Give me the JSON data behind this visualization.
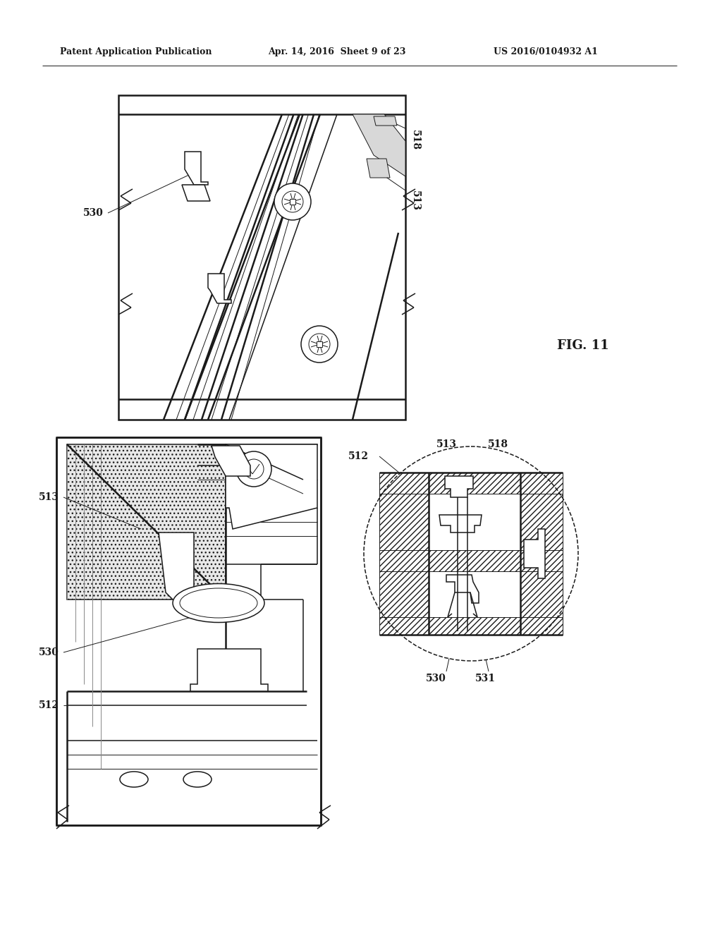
{
  "bg_color": "#ffffff",
  "line_color": "#1a1a1a",
  "header_left": "Patent Application Publication",
  "header_mid": "Apr. 14, 2016  Sheet 9 of 23",
  "header_right": "US 2016/0104932 A1",
  "fig_label": "FIG. 11",
  "lw_thin": 0.7,
  "lw_med": 1.1,
  "lw_thick": 1.8,
  "lw_vthick": 2.5,
  "hatch_color": "#555555",
  "gray_light": "#d8d8d8",
  "gray_med": "#aaaaaa",
  "gray_dark": "#888888",
  "gray_fill": "#c0c0c0",
  "dot_fill": "#e8e8e8"
}
